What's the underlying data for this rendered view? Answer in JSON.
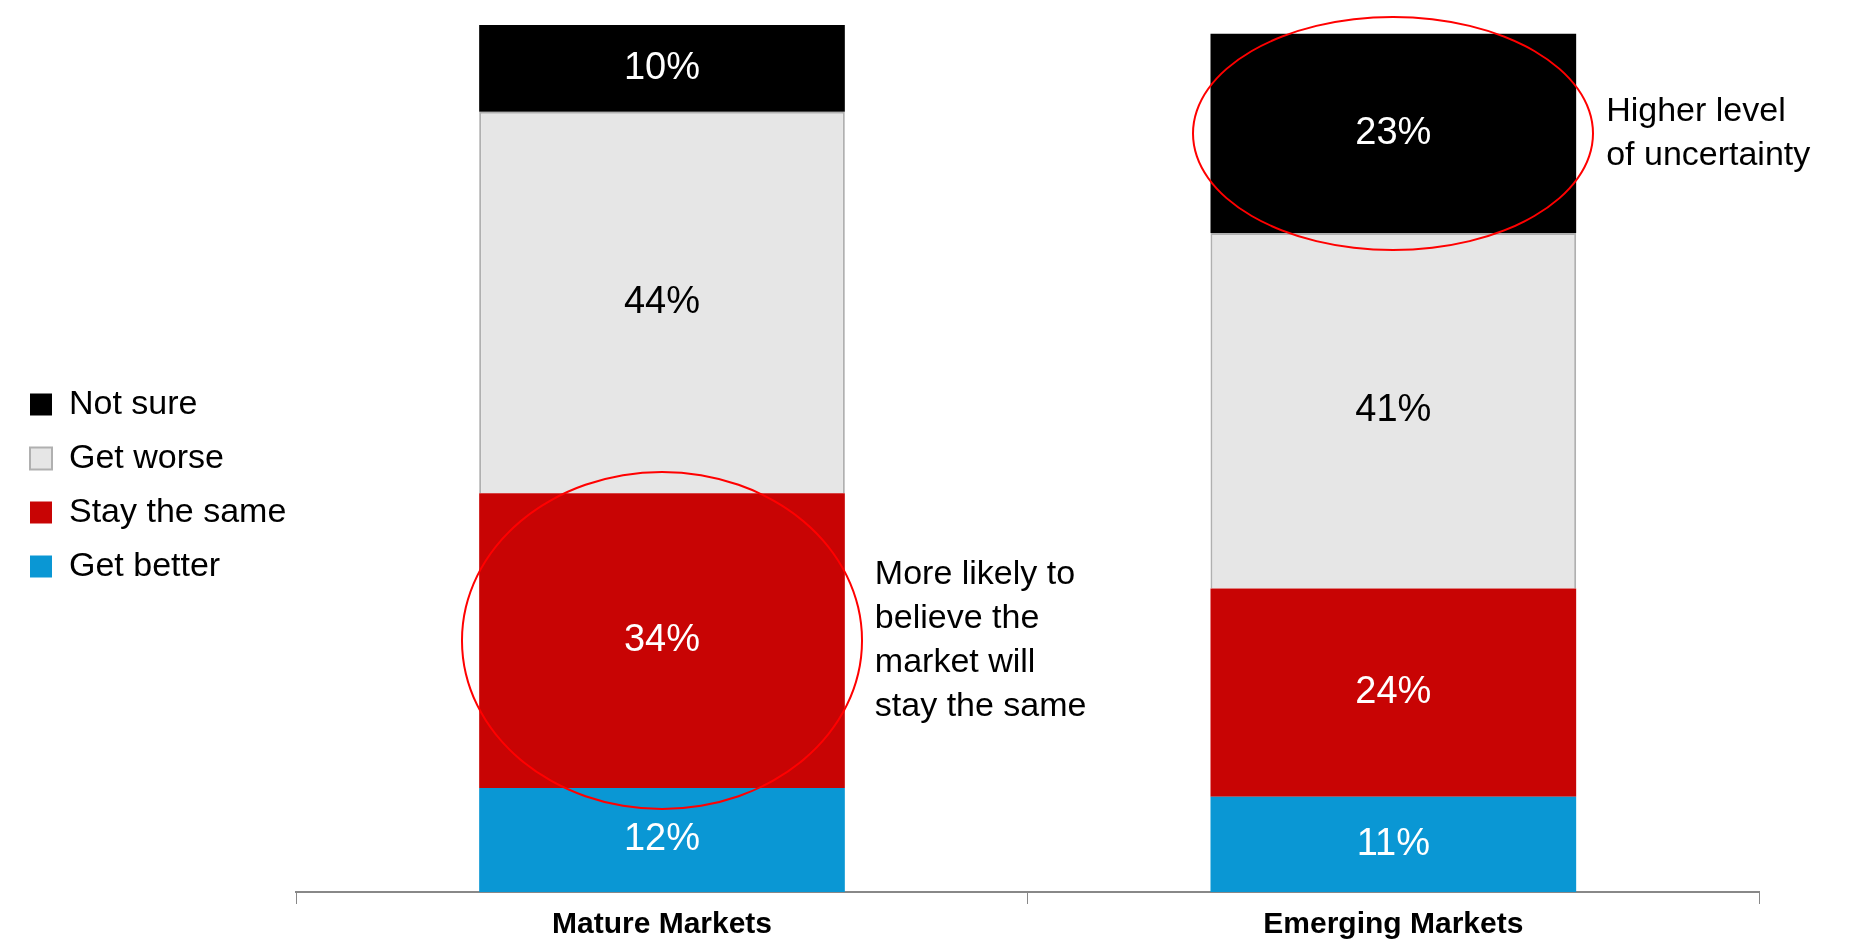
{
  "chart_data": {
    "type": "bar",
    "stacked": true,
    "categories": [
      "Mature Markets",
      "Emerging Markets"
    ],
    "series": [
      {
        "name": "Get better",
        "color": "#0a97d4",
        "values": [
          12,
          11
        ],
        "value_labels": [
          "12%",
          "11%"
        ]
      },
      {
        "name": "Stay the same",
        "color": "#c80404",
        "values": [
          34,
          24
        ],
        "value_labels": [
          "34%",
          "24%"
        ]
      },
      {
        "name": "Get worse",
        "color": "#e6e6e6",
        "values": [
          44,
          41
        ],
        "value_labels": [
          "44%",
          "41%"
        ]
      },
      {
        "name": "Not sure",
        "color": "#000000",
        "values": [
          10,
          23
        ],
        "value_labels": [
          "10%",
          "23%"
        ]
      }
    ],
    "legend": "left",
    "grid": false,
    "annotations": [
      "More likely to believe the market will stay the same",
      "Higher level of uncertainty"
    ]
  }
}
